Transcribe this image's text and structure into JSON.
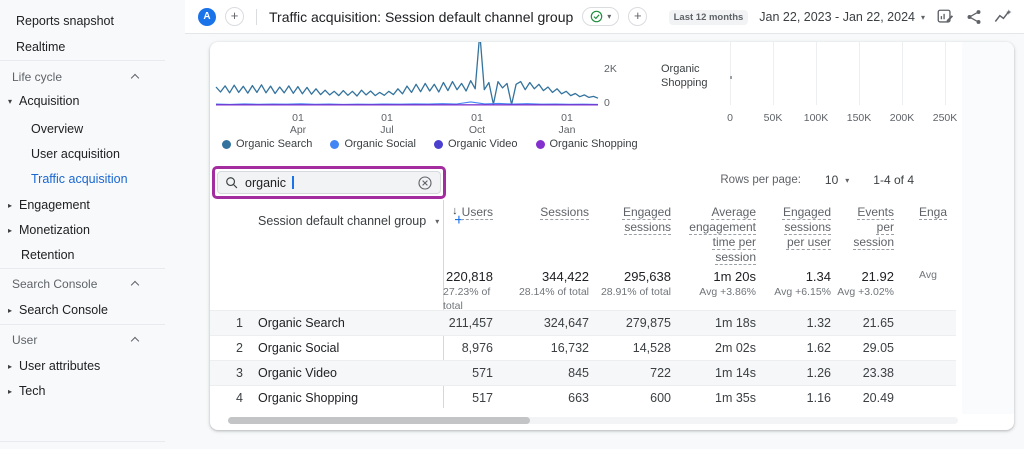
{
  "sidebar": {
    "reports_snapshot": "Reports snapshot",
    "realtime": "Realtime",
    "life_cycle": "Life cycle",
    "acquisition": "Acquisition",
    "overview": "Overview",
    "user_acquisition": "User acquisition",
    "traffic_acquisition": "Traffic acquisition",
    "engagement": "Engagement",
    "monetization": "Monetization",
    "retention": "Retention",
    "search_console_header": "Search Console",
    "search_console": "Search Console",
    "user_header": "User",
    "user_attributes": "User attributes",
    "tech": "Tech"
  },
  "header": {
    "avatar": "A",
    "title": "Traffic acquisition: Session default channel group",
    "date_preset": "Last 12 months",
    "date_range": "Jan 22, 2023 - Jan 22, 2024"
  },
  "search": {
    "value": "organic"
  },
  "pagination": {
    "rows_per_page_label": "Rows per page:",
    "rows_per_page": "10",
    "range": "1-4 of 4"
  },
  "icons": {
    "search": "magnifier",
    "clear": "circle-x",
    "verified": "circle-check",
    "add": "plus",
    "dropdown": "caret-down",
    "expand": "triangle-right",
    "collapse": "chevron-up",
    "sort_desc": "arrow-down",
    "edit_chart": "chart-with-pencil",
    "share": "share-nodes",
    "insights": "sparkline"
  },
  "colors": {
    "accent_blue": "#1a73e8",
    "selected_item_bg": "#e8f0fe",
    "annotation_magenta": "#a32c9f",
    "verified_green": "#1e8e3e"
  },
  "chart_data": [
    {
      "type": "line",
      "title": "Sessions over time by session default channel group",
      "x_ticks": [
        {
          "day": "01",
          "month": "Apr"
        },
        {
          "day": "01",
          "month": "Jul"
        },
        {
          "day": "01",
          "month": "Oct"
        },
        {
          "day": "01",
          "month": "Jan"
        }
      ],
      "y_ticks": [
        "2K",
        "0"
      ],
      "ylim": [
        0,
        2000
      ],
      "legend_position": "bottom",
      "series": [
        {
          "name": "Organic Search",
          "color": "#33739d",
          "values": [
            1000,
            720,
            1060,
            680,
            1100,
            700,
            1040,
            660,
            1080,
            700,
            1120,
            680,
            1050,
            640,
            1000,
            680,
            1060,
            650,
            1020,
            620,
            980,
            600,
            900,
            580,
            820,
            560,
            760,
            520,
            800,
            540,
            760,
            500,
            820,
            560,
            780,
            520,
            700,
            540,
            760,
            580,
            900,
            620,
            1050,
            700,
            1150,
            740,
            1200,
            780,
            1150,
            720,
            1250,
            800,
            1300,
            850,
            1200,
            780,
            1350,
            900,
            4000,
            850,
            1250,
            40,
            1300,
            950,
            1200,
            30,
            1150,
            1300,
            850,
            1250,
            900,
            1150,
            800,
            1000,
            700,
            900,
            620,
            760,
            520,
            640,
            460,
            560,
            420,
            480,
            380
          ]
        },
        {
          "name": "Organic Social",
          "color": "#4285f4",
          "values": [
            50,
            35,
            60,
            40,
            55,
            45,
            65,
            40,
            50,
            35,
            45,
            40,
            55,
            45,
            60,
            50,
            70,
            55,
            170,
            60,
            90,
            50,
            70,
            45,
            55,
            40,
            45,
            35
          ]
        },
        {
          "name": "Organic Video",
          "color": "#4a3fcf",
          "values": [
            10,
            12,
            8,
            11,
            9,
            10,
            12,
            9,
            11,
            10
          ]
        },
        {
          "name": "Organic Shopping",
          "color": "#8430ce",
          "values": [
            6,
            8,
            5,
            7,
            6,
            8,
            5,
            7,
            6,
            5
          ]
        }
      ]
    },
    {
      "type": "bar",
      "orientation": "horizontal",
      "title": "Users by session default channel group",
      "categories": [
        "Organic Search",
        "Organic Social",
        "Organic Video",
        "Organic Shopping"
      ],
      "values": [
        211457,
        8976,
        571,
        517
      ],
      "visible_category": "Organic Shopping",
      "x_ticks": [
        "0",
        "50K",
        "100K",
        "150K",
        "200K",
        "250K"
      ],
      "xlim": [
        0,
        270000
      ]
    }
  ],
  "table": {
    "dimension": "Session default channel group",
    "columns": [
      {
        "label": "Users",
        "sorted": true
      },
      {
        "label": "Sessions"
      },
      {
        "label": "Engaged\nsessions"
      },
      {
        "label": "Average\nengagement\ntime per\nsession"
      },
      {
        "label": "Engaged\nsessions\nper user"
      },
      {
        "label": "Events\nper\nsession"
      },
      {
        "label": "Enga",
        "partial": true
      }
    ],
    "totals": {
      "values": [
        "220,818",
        "344,422",
        "295,638",
        "1m 20s",
        "1.34",
        "21.92",
        ""
      ],
      "subs": [
        "27.23% of total",
        "28.14% of total",
        "28.91% of total",
        "Avg +3.86%",
        "Avg +6.15%",
        "Avg +3.02%",
        "Avg"
      ]
    },
    "rows": [
      {
        "num": "1",
        "channel": "Organic Search",
        "values": [
          "211,457",
          "324,647",
          "279,875",
          "1m 18s",
          "1.32",
          "21.65",
          ""
        ]
      },
      {
        "num": "2",
        "channel": "Organic Social",
        "values": [
          "8,976",
          "16,732",
          "14,528",
          "2m 02s",
          "1.62",
          "29.05",
          ""
        ]
      },
      {
        "num": "3",
        "channel": "Organic Video",
        "values": [
          "571",
          "845",
          "722",
          "1m 14s",
          "1.26",
          "23.38",
          ""
        ]
      },
      {
        "num": "4",
        "channel": "Organic Shopping",
        "values": [
          "517",
          "663",
          "600",
          "1m 35s",
          "1.16",
          "20.49",
          ""
        ]
      }
    ]
  }
}
